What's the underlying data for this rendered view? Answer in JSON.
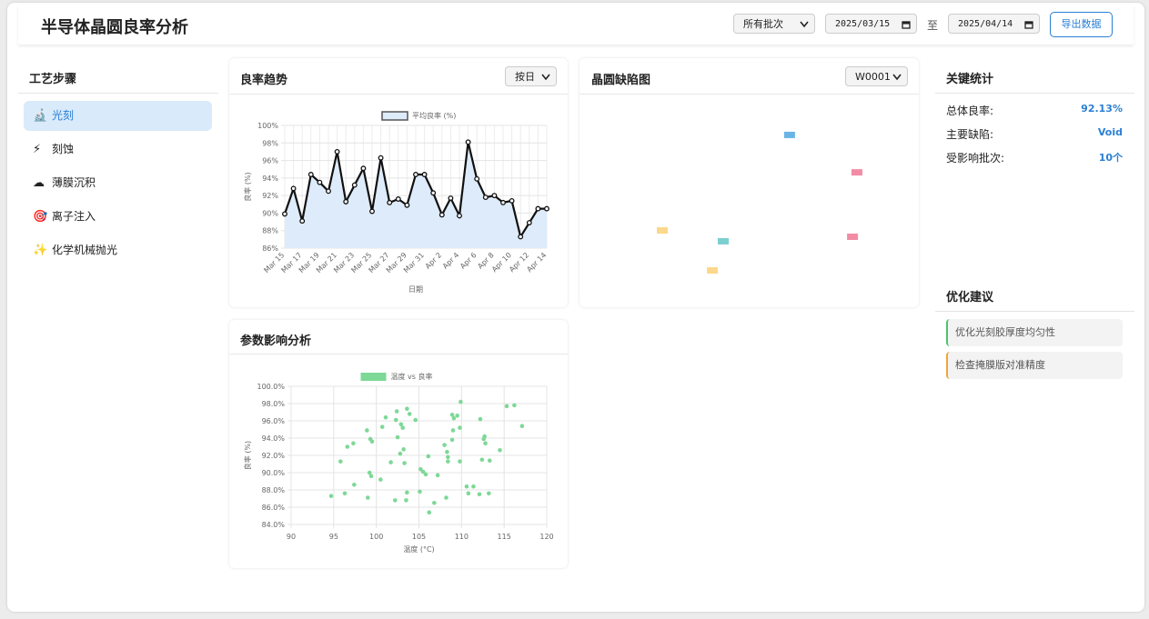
{
  "header": {
    "title": "半导体晶圆良率分析",
    "batch_select": "所有批次",
    "date_from": "2025/03/15",
    "date_separator": "至",
    "date_to": "2025/04/14",
    "export_button": "导出数据"
  },
  "sidebar": {
    "title": "工艺步骤",
    "steps": [
      {
        "icon": "🔬",
        "label": "光刻"
      },
      {
        "icon": "⚡",
        "label": "刻蚀"
      },
      {
        "icon": "☁",
        "label": "薄膜沉积"
      },
      {
        "icon": "🎯",
        "label": "离子注入"
      },
      {
        "icon": "✨",
        "label": "化学机械抛光"
      }
    ]
  },
  "controls": {
    "trend_period": "按日",
    "wafer": "W0001"
  },
  "chart_data": [
    {
      "type": "line",
      "title": "良率趋势",
      "x_label": "日期",
      "y_label": "良率 (%)",
      "categories": [
        "Mar 15",
        null,
        "Mar 17",
        null,
        "Mar 19",
        null,
        "Mar 21",
        null,
        "Mar 23",
        null,
        "Mar 25",
        null,
        "Mar 27",
        null,
        "Mar 29",
        null,
        "Mar 31",
        null,
        "Apr 2",
        null,
        "Apr 4",
        null,
        "Apr 6",
        null,
        "Apr 8",
        null,
        "Apr 10",
        null,
        "Apr 12",
        null,
        "Apr 14"
      ],
      "series": [
        {
          "name": "平均良率 (%)",
          "color": "#111111",
          "values": [
            89.9,
            92.8,
            89.1,
            94.4,
            93.5,
            92.5,
            97.0,
            91.3,
            93.2,
            95.1,
            90.2,
            96.3,
            91.2,
            91.6,
            90.9,
            94.4,
            94.4,
            92.3,
            89.8,
            91.7,
            89.7,
            98.1,
            93.9,
            91.8,
            92.0,
            91.2,
            91.4,
            87.3,
            88.9,
            90.5,
            90.5
          ]
        }
      ],
      "ylim": [
        86,
        100
      ],
      "yticks": [
        {
          "value": 86,
          "label": "86%"
        },
        {
          "value": 88,
          "label": "88%"
        },
        {
          "value": 90,
          "label": "90%"
        },
        {
          "value": 92,
          "label": "92%"
        },
        {
          "value": 94,
          "label": "94%"
        },
        {
          "value": 96,
          "label": "96%"
        },
        {
          "value": 98,
          "label": "98%"
        },
        {
          "value": 100,
          "label": "100%"
        }
      ],
      "grid": true
    },
    {
      "type": "scatter",
      "title": "晶圆缺陷图",
      "xlim": [
        0,
        100
      ],
      "ylim": [
        0,
        100
      ],
      "x": [
        61.8,
        81.7,
        24.2,
        42.2,
        80.4,
        39.0
      ],
      "values": [
        80.8,
        63.2,
        35.9,
        30.8,
        32.9,
        17.1
      ],
      "colors": [
        "#6ab4e6",
        "#f28ca5",
        "#fcd88a",
        "#7bcfcf",
        "#f28ca5",
        "#fcd88a"
      ]
    },
    {
      "type": "scatter",
      "title": "参数影响分析",
      "x_label": "温度 (°C)",
      "y_label": "良率 (%)",
      "series": [
        {
          "name": "温度 vs 良率",
          "color": "#7ed897",
          "x": [
            94.7,
            95.8,
            96.3,
            96.6,
            97.3,
            97.4,
            98.9,
            99.0,
            99.2,
            99.3,
            99.4,
            99.5,
            100.5,
            100.7,
            101.1,
            101.7,
            102.2,
            102.3,
            102.4,
            102.5,
            102.8,
            102.9,
            103.1,
            103.2,
            103.3,
            103.5,
            103.6,
            103.6,
            103.9,
            104.6,
            105.1,
            105.2,
            105.5,
            105.8,
            106.1,
            106.2,
            106.8,
            107.2,
            108.0,
            108.2,
            108.3,
            108.4,
            108.4,
            108.9,
            108.9,
            109.0,
            109.1,
            109.5,
            109.8,
            109.8,
            109.9,
            110.6,
            110.8,
            111.4,
            112.1,
            112.2,
            112.4,
            112.6,
            112.7,
            112.8,
            113.2,
            113.3,
            114.5,
            115.3,
            116.2,
            117.1
          ],
          "values": [
            87.3,
            91.3,
            87.6,
            93.0,
            93.4,
            88.6,
            94.9,
            87.1,
            90.0,
            93.9,
            89.6,
            93.6,
            89.2,
            95.3,
            96.4,
            91.2,
            86.8,
            96.1,
            97.1,
            94.1,
            92.2,
            95.6,
            95.2,
            92.7,
            91.1,
            86.8,
            87.7,
            97.4,
            96.8,
            96.1,
            87.8,
            90.4,
            90.1,
            89.8,
            91.9,
            85.4,
            86.5,
            89.7,
            93.2,
            87.1,
            92.4,
            91.8,
            91.3,
            93.8,
            96.7,
            94.9,
            96.3,
            96.6,
            95.2,
            91.3,
            98.2,
            88.4,
            87.6,
            88.4,
            87.5,
            96.2,
            91.5,
            93.9,
            94.2,
            93.4,
            87.6,
            91.4,
            92.6,
            97.7,
            97.8,
            95.4
          ]
        }
      ],
      "xlim": [
        90,
        120
      ],
      "xticks": [
        90,
        95,
        100,
        105,
        110,
        115,
        120
      ],
      "ylim": [
        84,
        100
      ],
      "yticks": [
        {
          "value": 84,
          "label": "84.0%"
        },
        {
          "value": 86,
          "label": "86.0%"
        },
        {
          "value": 88,
          "label": "88.0%"
        },
        {
          "value": 90,
          "label": "90.0%"
        },
        {
          "value": 92,
          "label": "92.0%"
        },
        {
          "value": 94,
          "label": "94.0%"
        },
        {
          "value": 96,
          "label": "96.0%"
        },
        {
          "value": 98,
          "label": "98.0%"
        },
        {
          "value": 100,
          "label": "100.0%"
        }
      ],
      "grid": true
    }
  ],
  "stats": {
    "title": "关键统计",
    "items": [
      {
        "label": "总体良率:",
        "value": "92.13%"
      },
      {
        "label": "主要缺陷:",
        "value": "Void"
      },
      {
        "label": "受影响批次:",
        "value": "10个"
      }
    ]
  },
  "suggestions": {
    "title": "优化建议",
    "items": [
      {
        "text": "优化光刻胶厚度均匀性",
        "color": "#4cc36b"
      },
      {
        "text": "检查掩膜版对准精度",
        "color": "#f0a53a"
      }
    ]
  }
}
